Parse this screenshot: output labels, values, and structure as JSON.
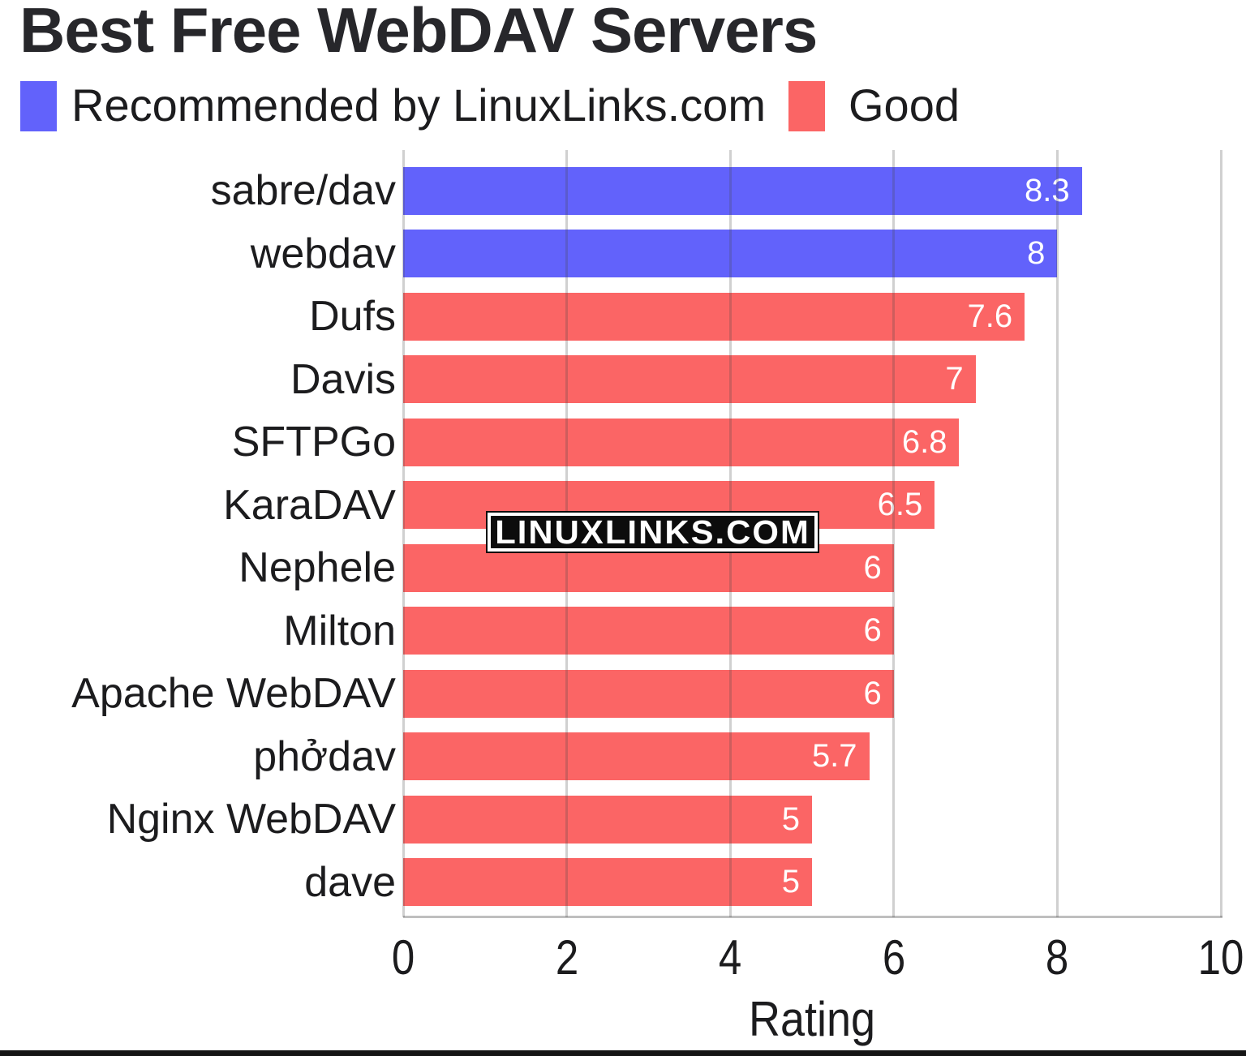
{
  "title": "Best Free WebDAV Servers",
  "watermark": "LINUXLINKS.COM",
  "legend": {
    "items": [
      {
        "label": "Recommended by LinuxLinks.com",
        "color": "#6262fb"
      },
      {
        "label": "Good",
        "color": "#fb6565"
      }
    ]
  },
  "chart_data": {
    "type": "bar",
    "orientation": "horizontal",
    "title": "Best Free WebDAV Servers",
    "xlabel": "Rating",
    "ylabel": "",
    "xlim": [
      0,
      10
    ],
    "xticks": [
      "0",
      "2",
      "4",
      "6",
      "8",
      "10"
    ],
    "grid": true,
    "legend_position": "top-left",
    "categories": [
      "sabre/dav",
      "webdav",
      "Dufs",
      "Davis",
      "SFTPGo",
      "KaraDAV",
      "Nephele",
      "Milton",
      "Apache WebDAV",
      "phởdav",
      "Nginx WebDAV",
      "dave"
    ],
    "series": [
      {
        "name": "Recommended by LinuxLinks.com",
        "color": "#6262fb",
        "members": [
          "sabre/dav",
          "webdav"
        ]
      },
      {
        "name": "Good",
        "color": "#fb6565",
        "members": [
          "Dufs",
          "Davis",
          "SFTPGo",
          "KaraDAV",
          "Nephele",
          "Milton",
          "Apache WebDAV",
          "phởdav",
          "Nginx WebDAV",
          "dave"
        ]
      }
    ],
    "values": [
      8.3,
      8,
      7.6,
      7,
      6.8,
      6.5,
      6,
      6,
      6,
      5.7,
      5,
      5
    ],
    "value_labels": [
      "8.3",
      "8",
      "7.6",
      "7",
      "6.8",
      "6.5",
      "6",
      "6",
      "6",
      "5.7",
      "5",
      "5"
    ],
    "bar_series_index": [
      0,
      0,
      1,
      1,
      1,
      1,
      1,
      1,
      1,
      1,
      1,
      1
    ]
  },
  "colors": {
    "recommended": "#6262fb",
    "good": "#fb6565",
    "gridline": "#c9c9c9",
    "axis_line": "#bfbfbf",
    "text": "#1c1c1e",
    "value_text": "#ffffff"
  }
}
